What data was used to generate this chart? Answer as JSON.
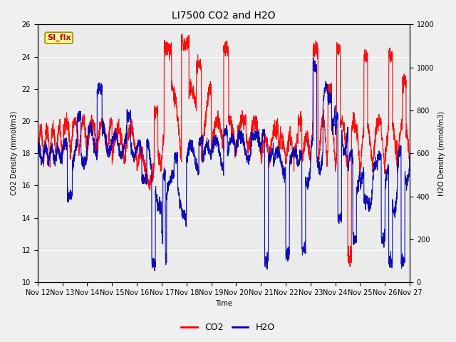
{
  "title": "LI7500 CO2 and H2O",
  "xlabel": "Time",
  "ylabel_left": "CO2 Density (mmol/m3)",
  "ylabel_right": "H2O Density (mmol/m3)",
  "co2_color": "#FF0000",
  "h2o_color": "#0000BB",
  "ylim_left": [
    10,
    26
  ],
  "ylim_right": [
    0,
    1200
  ],
  "yticks_left": [
    10,
    12,
    14,
    16,
    18,
    20,
    22,
    24,
    26
  ],
  "yticks_right": [
    0,
    200,
    400,
    600,
    800,
    1000,
    1200
  ],
  "xtick_labels": [
    "Nov 12",
    "Nov 13",
    "Nov 14",
    "Nov 15",
    "Nov 16",
    "Nov 17",
    "Nov 18",
    "Nov 19",
    "Nov 20",
    "Nov 21",
    "Nov 22",
    "Nov 23",
    "Nov 24",
    "Nov 25",
    "Nov 26",
    "Nov 27"
  ],
  "annotation_text": "SI_flx",
  "annotation_bg": "#FFFF99",
  "annotation_border": "#AA8800",
  "legend_labels": [
    "CO2",
    "H2O"
  ],
  "fig_bg_color": "#F0F0F0",
  "plot_bg_color": "#EBEBEB",
  "grid_color": "#FFFFFF",
  "title_fontsize": 10,
  "label_fontsize": 7,
  "tick_fontsize": 7,
  "annot_fontsize": 8,
  "legend_fontsize": 9,
  "line_width": 0.8
}
